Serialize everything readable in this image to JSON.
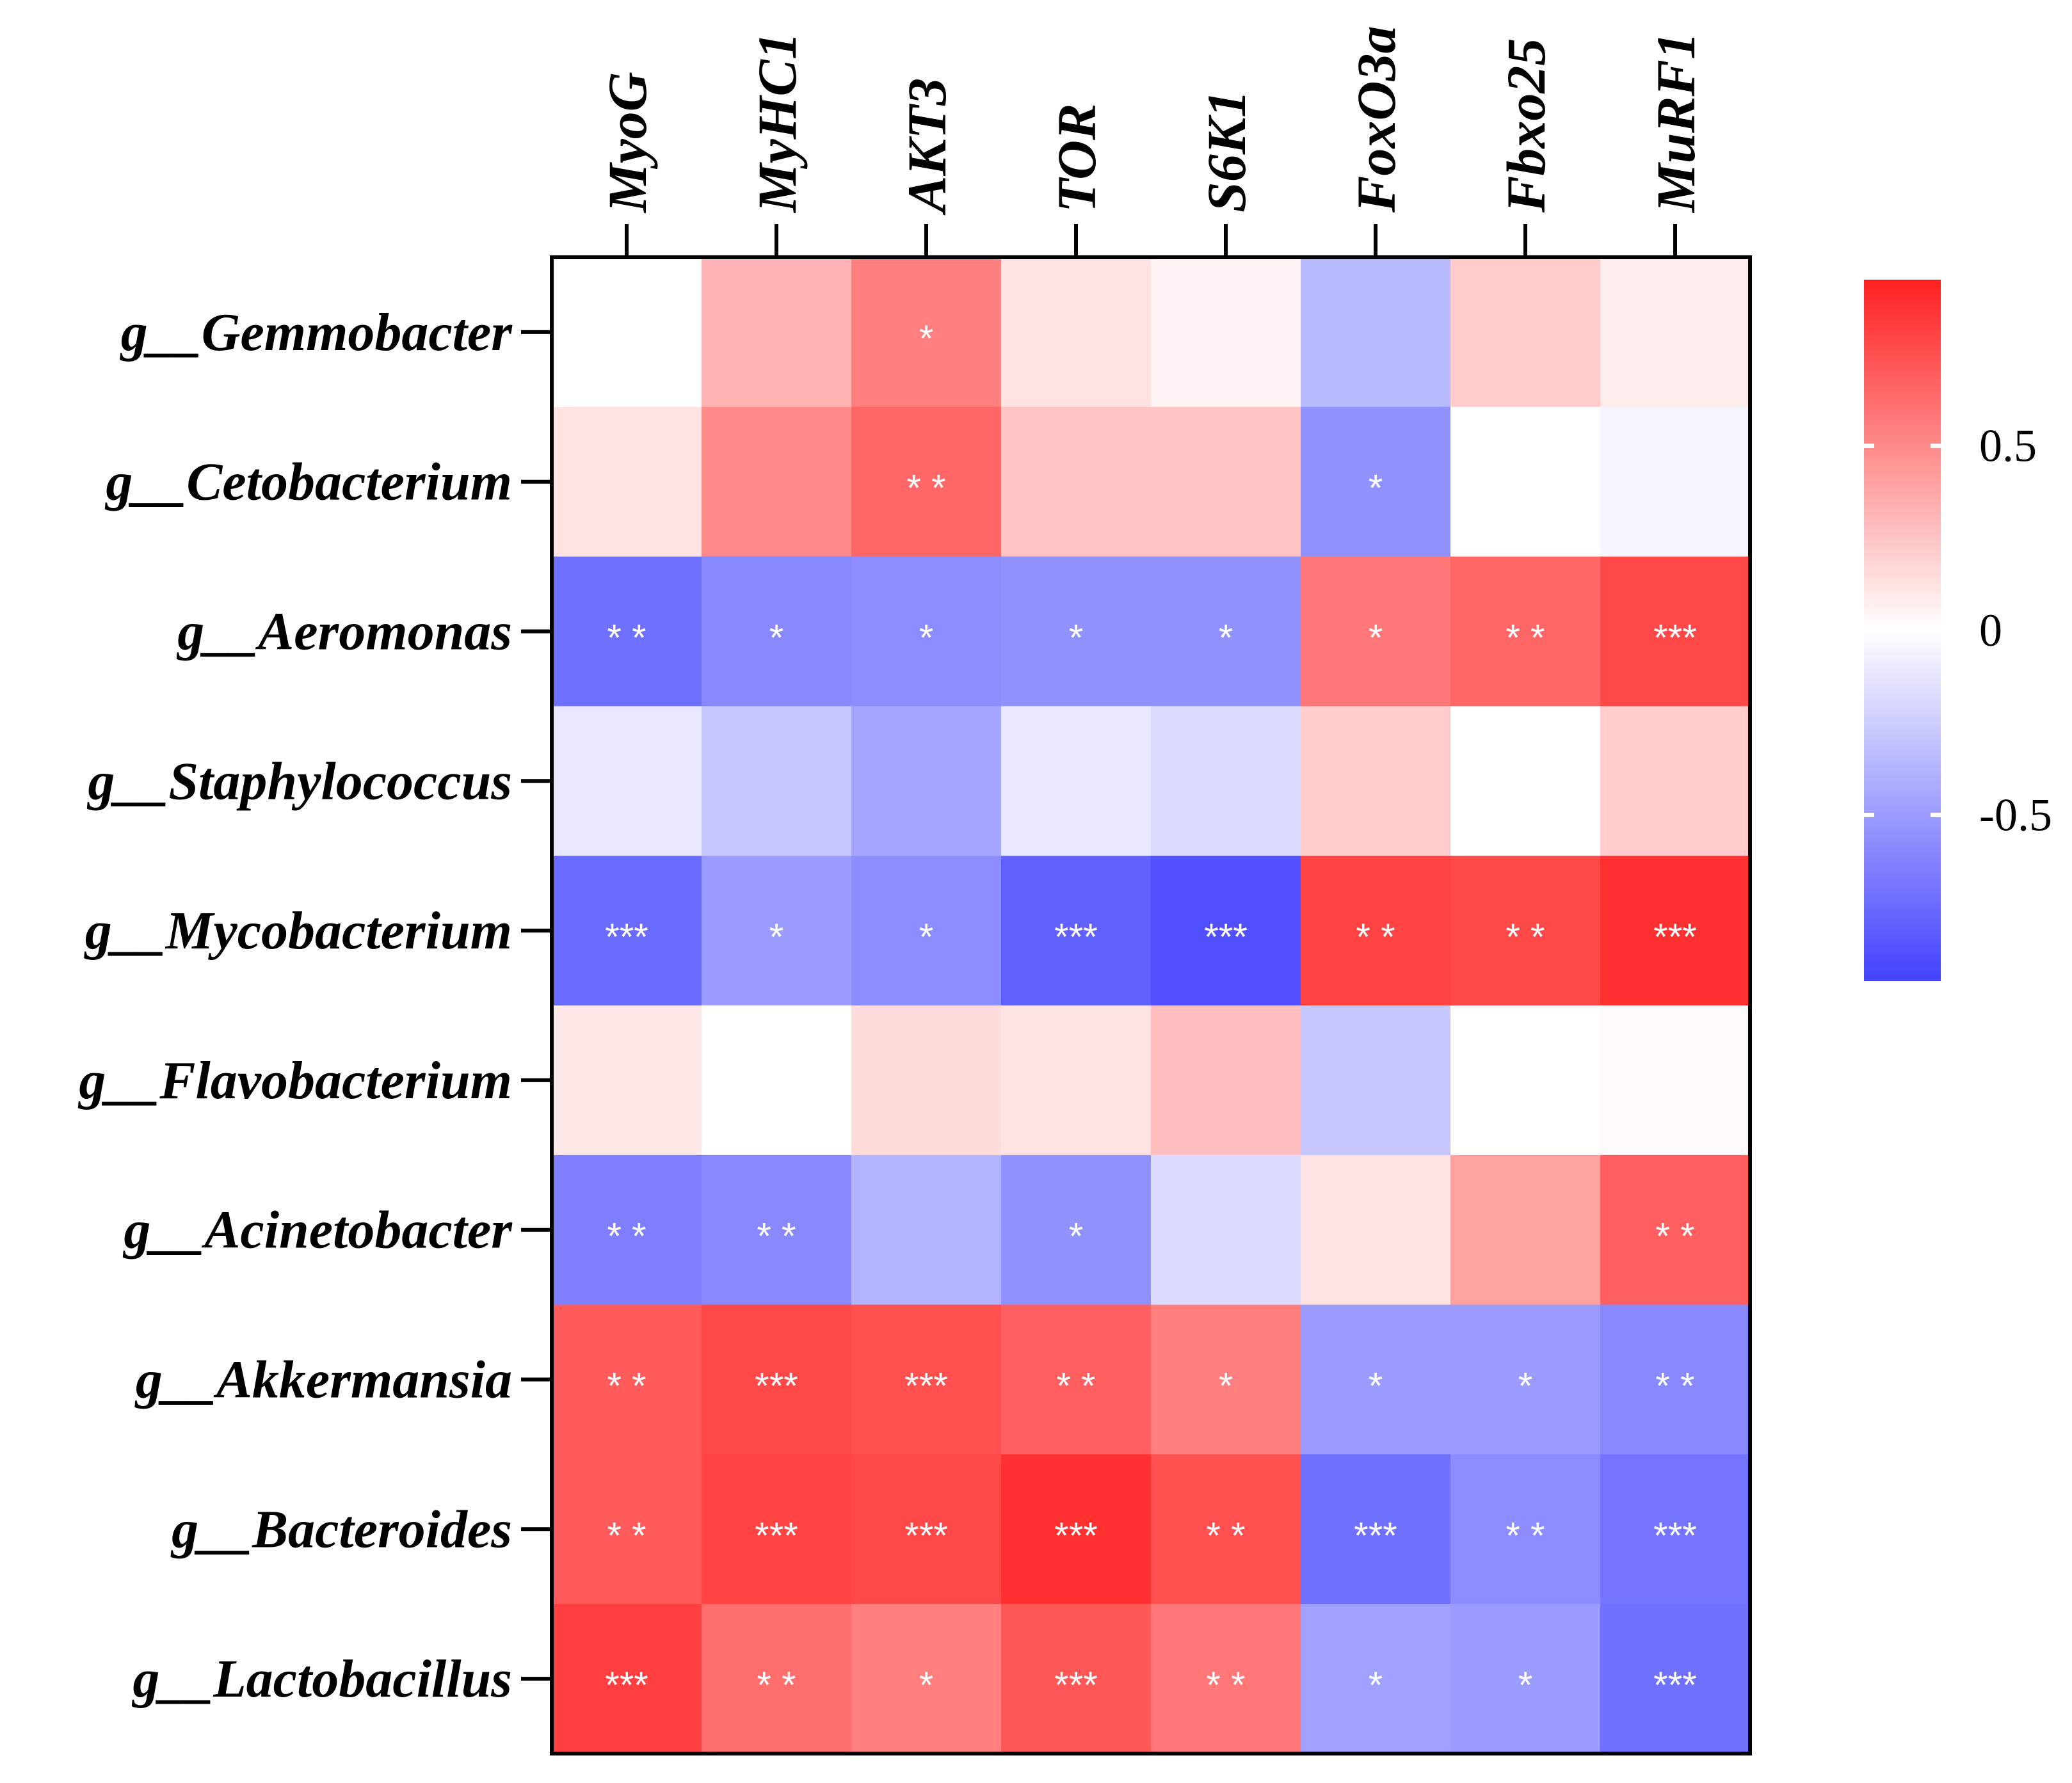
{
  "chart_data": {
    "type": "heatmap",
    "columns": [
      "MyoG",
      "MyHC1",
      "AKT3",
      "TOR",
      "S6K1",
      "FoxO3a",
      "Fbxo25",
      "MuRF1"
    ],
    "rows": [
      "g__Gemmobacter",
      "g__Cetobacterium",
      "g__Aeromonas",
      "g__Staphylococcus",
      "g__Mycobacterium",
      "g__Flavobacterium",
      "g__Acinetobacter",
      "g__Akkermansia",
      "g__Bacteroides",
      "g__Lactobacillus"
    ],
    "values": [
      [
        0.0,
        0.33,
        0.55,
        0.12,
        0.05,
        -0.35,
        0.22,
        0.08
      ],
      [
        0.12,
        0.5,
        0.65,
        0.25,
        0.25,
        -0.55,
        0.0,
        -0.05
      ],
      [
        -0.72,
        -0.6,
        -0.58,
        -0.55,
        -0.55,
        0.58,
        0.65,
        0.78
      ],
      [
        -0.12,
        -0.28,
        -0.45,
        -0.12,
        -0.18,
        0.22,
        0.0,
        0.22
      ],
      [
        -0.75,
        -0.5,
        -0.58,
        -0.8,
        -0.88,
        0.8,
        0.78,
        0.88
      ],
      [
        0.1,
        0.0,
        0.15,
        0.12,
        0.28,
        -0.28,
        0.0,
        0.02
      ],
      [
        -0.65,
        -0.6,
        -0.38,
        -0.55,
        -0.18,
        0.12,
        0.4,
        0.68
      ],
      [
        0.7,
        0.78,
        0.75,
        0.68,
        0.55,
        -0.5,
        -0.5,
        -0.6
      ],
      [
        0.7,
        0.8,
        0.78,
        0.88,
        0.75,
        -0.72,
        -0.58,
        -0.7
      ],
      [
        0.82,
        0.62,
        0.55,
        0.72,
        0.58,
        -0.48,
        -0.5,
        -0.72
      ]
    ],
    "significance": [
      [
        "",
        "",
        "*",
        "",
        "",
        "",
        "",
        ""
      ],
      [
        "",
        "",
        "* *",
        "",
        "",
        "*",
        "",
        ""
      ],
      [
        "* *",
        "*",
        "*",
        "*",
        "*",
        "*",
        "* *",
        "***"
      ],
      [
        "",
        "",
        "",
        "",
        "",
        "",
        "",
        ""
      ],
      [
        "***",
        "*",
        "*",
        "***",
        "***",
        "* *",
        "* *",
        "***"
      ],
      [
        "",
        "",
        "",
        "",
        "",
        "",
        "",
        ""
      ],
      [
        "* *",
        "* *",
        "",
        "*",
        "",
        "",
        "",
        "* *"
      ],
      [
        "* *",
        "***",
        "***",
        "* *",
        "*",
        "*",
        "*",
        "* *"
      ],
      [
        "* *",
        "***",
        "***",
        "***",
        "* *",
        "***",
        "* *",
        "***"
      ],
      [
        "***",
        "* *",
        "*",
        "***",
        "* *",
        "*",
        "*",
        "***"
      ]
    ],
    "colorbar": {
      "range": [
        -0.95,
        0.95
      ],
      "ticks": [
        0.5,
        0,
        -0.5
      ],
      "tick_labels": [
        "0.5",
        "0",
        "-0.5"
      ],
      "low_color": "#4242ff",
      "mid_color": "#ffffff",
      "high_color": "#ff2020",
      "placement": "right"
    }
  }
}
